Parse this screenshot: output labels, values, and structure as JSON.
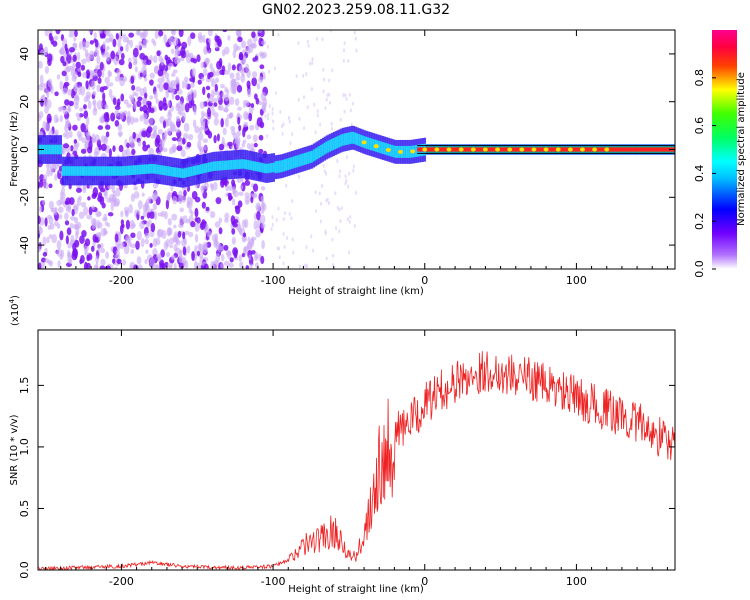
{
  "title": "GN02.2023.259.08.11.G32",
  "chart_data": [
    {
      "type": "heatmap",
      "xlabel": "Height of straight line (km)",
      "ylabel": "Frequency (Hz)",
      "xlim": [
        -255,
        165
      ],
      "ylim": [
        -50,
        50
      ],
      "xticks": [
        -200,
        -100,
        0,
        100
      ],
      "yticks": [
        -40,
        -20,
        0,
        20,
        40
      ],
      "colorbar": {
        "label": "Normalized spectral amplitude",
        "range": [
          0,
          1
        ],
        "ticks": [
          0.0,
          0.2,
          0.4,
          0.6,
          0.8
        ],
        "tick_labels": [
          "0.0",
          "0.2",
          "0.4",
          "0.6",
          "0.8"
        ],
        "colormap": [
          "#ffffff",
          "#8000ff",
          "#0000ff",
          "#00ffff",
          "#00ff00",
          "#ffff00",
          "#ff0000",
          "#ff00a0"
        ]
      },
      "ridge": [
        {
          "x": -240,
          "y": -9
        },
        {
          "x": -220,
          "y": -9
        },
        {
          "x": -200,
          "y": -9
        },
        {
          "x": -180,
          "y": -8
        },
        {
          "x": -160,
          "y": -10
        },
        {
          "x": -140,
          "y": -7
        },
        {
          "x": -120,
          "y": -6
        },
        {
          "x": -105,
          "y": -8
        },
        {
          "x": -95,
          "y": -7
        },
        {
          "x": -85,
          "y": -5
        },
        {
          "x": -75,
          "y": -3
        },
        {
          "x": -65,
          "y": 1
        },
        {
          "x": -55,
          "y": 4
        },
        {
          "x": -48,
          "y": 5
        },
        {
          "x": -40,
          "y": 3
        },
        {
          "x": -30,
          "y": 1
        },
        {
          "x": -20,
          "y": -1
        },
        {
          "x": -10,
          "y": -1
        },
        {
          "x": 0,
          "y": 0
        },
        {
          "x": 50,
          "y": 0
        },
        {
          "x": 100,
          "y": 0
        },
        {
          "x": 165,
          "y": 0
        }
      ]
    },
    {
      "type": "line",
      "xlabel": "Height of straight line (km)",
      "ylabel": "SNR (10 * v/v)",
      "y_multiplier": "(x10",
      "y_multiplier_exp": "4",
      "xlim": [
        -255,
        165
      ],
      "ylim": [
        0,
        1.95
      ],
      "xticks": [
        -200,
        -100,
        0,
        100
      ],
      "yticks": [
        0.0,
        0.5,
        1.0,
        1.5
      ],
      "ytick_labels": [
        "0.0",
        "0.5",
        "1.0",
        "1.5"
      ],
      "series": [
        {
          "color": "#ee2222",
          "points": [
            [
              -255,
              0.01
            ],
            [
              -230,
              0.02
            ],
            [
              -200,
              0.03
            ],
            [
              -180,
              0.06
            ],
            [
              -160,
              0.03
            ],
            [
              -140,
              0.02
            ],
            [
              -120,
              0.02
            ],
            [
              -100,
              0.03
            ],
            [
              -90,
              0.08
            ],
            [
              -80,
              0.2
            ],
            [
              -70,
              0.25
            ],
            [
              -60,
              0.32
            ],
            [
              -55,
              0.25
            ],
            [
              -50,
              0.12
            ],
            [
              -45,
              0.1
            ],
            [
              -40,
              0.3
            ],
            [
              -35,
              0.6
            ],
            [
              -30,
              0.9
            ],
            [
              -25,
              1.0
            ],
            [
              -20,
              1.1
            ],
            [
              -15,
              1.15
            ],
            [
              -10,
              1.2
            ],
            [
              -5,
              1.25
            ],
            [
              0,
              1.35
            ],
            [
              10,
              1.45
            ],
            [
              20,
              1.52
            ],
            [
              30,
              1.58
            ],
            [
              40,
              1.62
            ],
            [
              50,
              1.6
            ],
            [
              60,
              1.58
            ],
            [
              70,
              1.56
            ],
            [
              80,
              1.5
            ],
            [
              90,
              1.45
            ],
            [
              100,
              1.4
            ],
            [
              110,
              1.35
            ],
            [
              120,
              1.3
            ],
            [
              130,
              1.25
            ],
            [
              140,
              1.2
            ],
            [
              150,
              1.12
            ],
            [
              160,
              1.05
            ],
            [
              165,
              1.0
            ]
          ]
        }
      ]
    }
  ]
}
